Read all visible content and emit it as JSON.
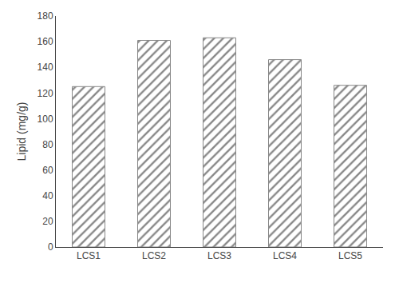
{
  "chart_data": {
    "type": "bar",
    "categories": [
      "LCS1",
      "LCS2",
      "LCS3",
      "LCS4",
      "LCS5"
    ],
    "values": [
      125,
      161,
      163,
      146,
      126
    ],
    "color": "#ffffff",
    "ylabel": "Lipid (mg/g)",
    "ylim": [
      0,
      180
    ],
    "yticks": [
      0,
      20,
      40,
      60,
      80,
      100,
      120,
      140,
      160,
      180
    ],
    "grid": false
  }
}
